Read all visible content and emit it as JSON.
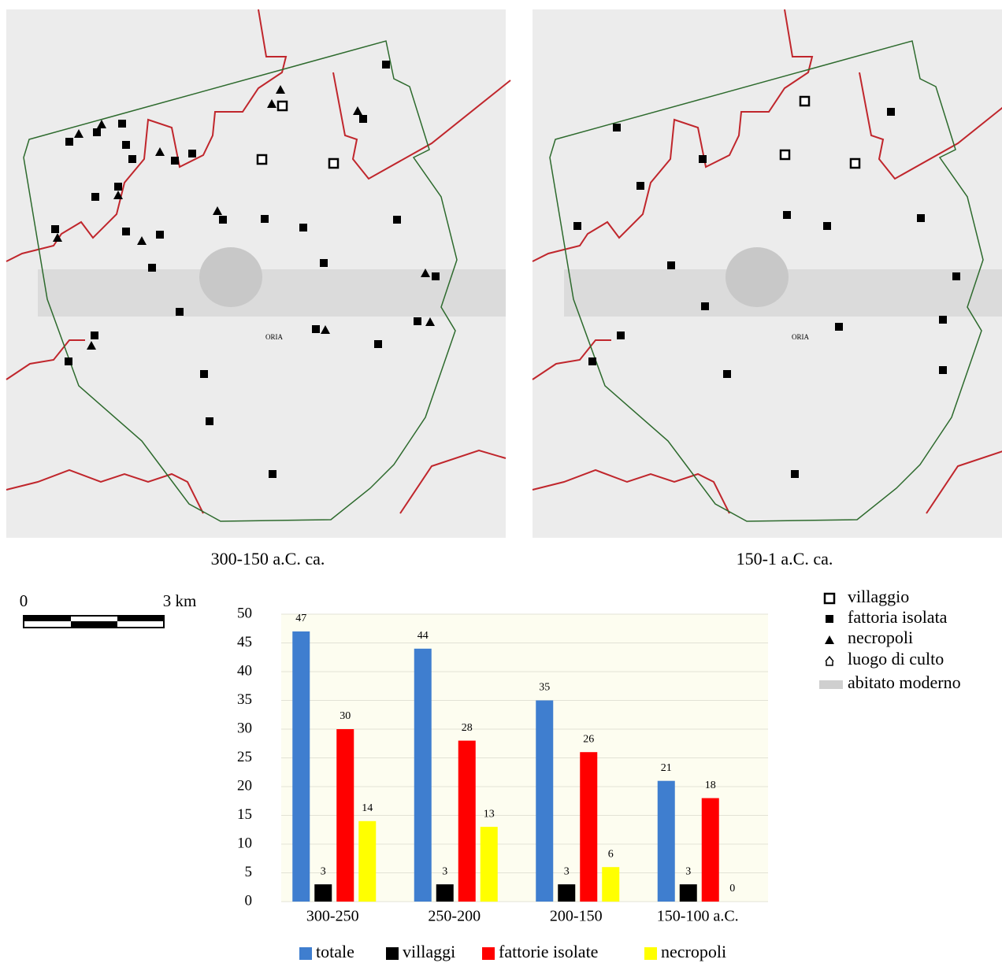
{
  "maps": [
    {
      "caption": "300-150 a.C.  ca.",
      "place_label": "ORIA"
    },
    {
      "caption": "150-1 a.C. ca.",
      "place_label": "ORIA"
    }
  ],
  "scale_bar": {
    "start_label": "0",
    "end_label": "3 km"
  },
  "map_legend": [
    "villaggio",
    "fattoria isolata",
    "necropoli",
    "luogo di culto",
    "abitato moderno"
  ],
  "chart_data": {
    "type": "bar",
    "categories": [
      "300-250",
      "250-200",
      "200-150",
      "150-100 a.C."
    ],
    "series": [
      {
        "name": "totale",
        "color": "#3f7ecf",
        "values": [
          47,
          44,
          35,
          21
        ]
      },
      {
        "name": "villaggi",
        "color": "#000000",
        "values": [
          3,
          3,
          3,
          3
        ]
      },
      {
        "name": "fattorie isolate",
        "color": "#ff0000",
        "values": [
          30,
          28,
          26,
          18
        ]
      },
      {
        "name": "necropoli",
        "color": "#ffff00",
        "values": [
          14,
          13,
          6,
          0
        ]
      }
    ],
    "ylim": [
      0,
      50
    ],
    "yticks": [
      0,
      5,
      10,
      15,
      20,
      25,
      30,
      35,
      40,
      45,
      50
    ],
    "grid": true,
    "legend": "bottom"
  }
}
